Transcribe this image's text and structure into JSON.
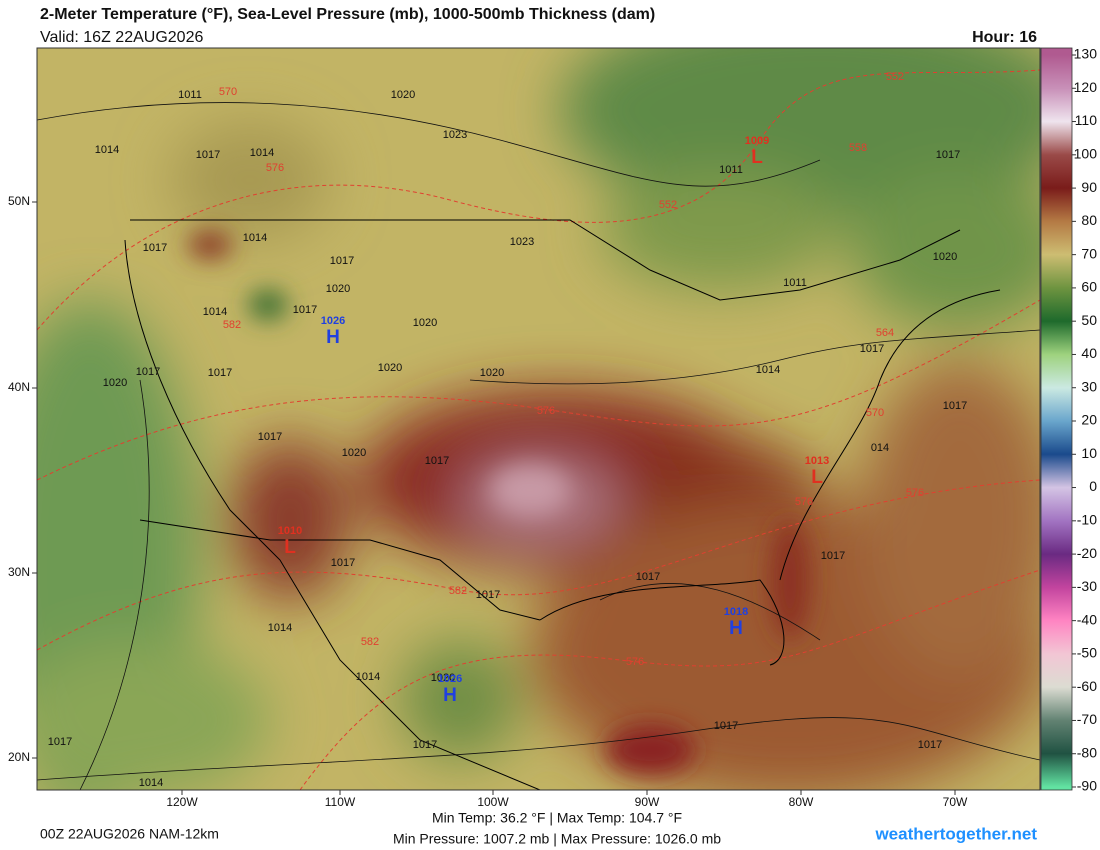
{
  "header": {
    "title": "2-Meter Temperature (°F), Sea-Level Pressure (mb), 1000-500mb Thickness (dam)",
    "valid": "Valid: 16Z 22AUG2026",
    "hour": "Hour: 16"
  },
  "colorbar": {
    "ticks": [
      130,
      120,
      110,
      100,
      90,
      80,
      70,
      60,
      50,
      40,
      30,
      20,
      10,
      0,
      -10,
      -20,
      -30,
      -40,
      -50,
      -60,
      -70,
      -80,
      -90
    ],
    "colors": [
      "#b05a90",
      "#c890b8",
      "#efe4ee",
      "#9a4a48",
      "#7a1c1a",
      "#b47a44",
      "#cdbd72",
      "#6e9440",
      "#1e6a2c",
      "#9ed27e",
      "#cbe9e2",
      "#6aa6cc",
      "#1a4a8c",
      "#d4c4e4",
      "#a274c2",
      "#6a2a82",
      "#c2449e",
      "#ff84c2",
      "#f2c6d4",
      "#dcdcd2",
      "#628272",
      "#205242",
      "#62e2a2"
    ]
  },
  "axes": {
    "lon_labels": [
      "120W",
      "110W",
      "100W",
      "90W",
      "80W",
      "70W"
    ],
    "lat_labels": [
      "50N",
      "40N",
      "30N",
      "20N"
    ]
  },
  "centers": [
    {
      "letter": "L",
      "value": "1009"
    },
    {
      "letter": "H",
      "value": "1026"
    },
    {
      "letter": "L",
      "value": "1013"
    },
    {
      "letter": "L",
      "value": "1010"
    },
    {
      "letter": "H",
      "value": "1018"
    },
    {
      "letter": "H",
      "value": "1026"
    }
  ],
  "isobar_labels": [
    "1011",
    "1020",
    "1014",
    "1017",
    "1014",
    "1023",
    "1011",
    "1017",
    "1017",
    "1014",
    "1023",
    "1017",
    "1020",
    "1014",
    "1017",
    "1020",
    "1020",
    "1011",
    "1017",
    "1020",
    "1017",
    "1017",
    "1020",
    "1020",
    "1014",
    "1017",
    "1017",
    "1020",
    "1017",
    "014",
    "1017",
    "1017",
    "1017",
    "1017",
    "1014",
    "1020",
    "1014",
    "1017",
    "1017",
    "1017",
    "1017",
    "1014"
  ],
  "thickness_labels": [
    "570",
    "576",
    "558",
    "552",
    "552",
    "582",
    "564",
    "576",
    "570",
    "576",
    "576",
    "582",
    "576",
    "582"
  ],
  "footer": {
    "run": "00Z 22AUG2026 NAM-12km",
    "temp_range": "Min Temp:  36.2 °F | Max Temp: 104.7 °F",
    "pressure_range": "Min Pressure: 1007.2 mb | Max Pressure: 1026.0 mb",
    "site": "weathertogether.net"
  }
}
